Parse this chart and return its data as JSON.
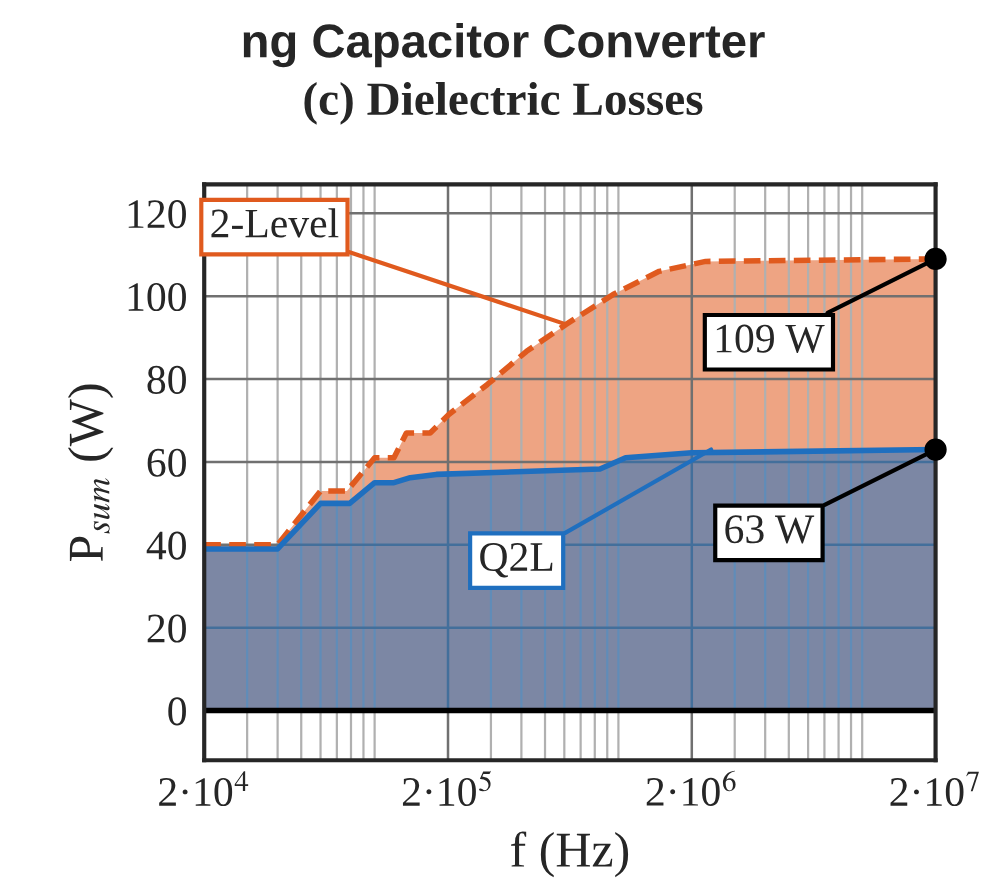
{
  "chart_data": {
    "type": "area",
    "title": "ng Capacitor Converter",
    "subtitle": "(c) Dielectric Losses",
    "xlabel": "f (Hz)",
    "ylabel": "P$_{sum}$ (W)",
    "log": "x",
    "grid": true,
    "legend": false,
    "xlim": [
      20000,
      20000000
    ],
    "ylim": [
      -12,
      127
    ],
    "xticks": [
      {
        "value": 20000,
        "label": "2·10$^{4}$"
      },
      {
        "value": 200000,
        "label": "2·10$^{5}$"
      },
      {
        "value": 2000000,
        "label": "2·10$^{6}$"
      },
      {
        "value": 20000000,
        "label": "2·10$^{7}$"
      }
    ],
    "yticks": [
      0,
      20,
      40,
      60,
      80,
      100,
      120
    ],
    "series": [
      {
        "color": "#e05a1e",
        "line_style": "dashed",
        "x": [
          20000,
          40000,
          60000,
          77000,
          100000,
          120000,
          135000,
          169000,
          202000,
          290000,
          420000,
          610000,
          950000,
          1470000,
          2280000,
          20000000
        ],
        "values": [
          40,
          40,
          53,
          53,
          61,
          61,
          67,
          67,
          71.5,
          78.7,
          86.7,
          93.2,
          100.4,
          106,
          108.4,
          109
        ]
      },
      {
        "color": "#1f6fbf",
        "line_style": "solid",
        "x": [
          20000,
          40000,
          60000,
          79000,
          100000,
          120000,
          140000,
          179000,
          840000,
          1070000,
          2000000,
          20000000
        ],
        "values": [
          39,
          39,
          50,
          50,
          55,
          55,
          56.2,
          57,
          58.3,
          61,
          62.2,
          63
        ]
      }
    ],
    "ref_lines": [
      {
        "axis": "y",
        "value": 0,
        "color": "#000000"
      }
    ],
    "annotations": [
      {
        "text": "2-Level",
        "x": 610000,
        "y": 93.2
      },
      {
        "text": "Q2L",
        "x": 2400000,
        "y": 63
      },
      {
        "text": "109 W",
        "x": 20000000,
        "y": 109
      },
      {
        "text": "63 W",
        "x": 20000000,
        "y": 63
      }
    ]
  }
}
